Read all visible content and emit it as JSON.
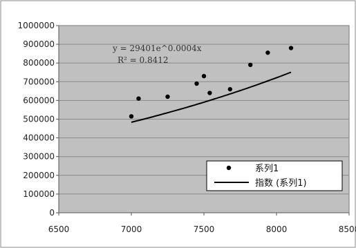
{
  "chart_data": {
    "type": "scatter",
    "title": "",
    "xlabel": "",
    "ylabel": "",
    "xlim": [
      6500,
      8500
    ],
    "ylim": [
      0,
      1000000
    ],
    "x_ticks": [
      "6500",
      "7000",
      "7500",
      "8000",
      "8500"
    ],
    "y_ticks": [
      "0",
      "100000",
      "200000",
      "300000",
      "400000",
      "500000",
      "600000",
      "700000",
      "800000",
      "900000",
      "1000000"
    ],
    "grid": true,
    "legend_position": "bottom-right",
    "plot_background": "#c0c0c0",
    "series": [
      {
        "name": "系列1",
        "marker": "dot",
        "color": "#000000",
        "points": [
          {
            "x": 7000,
            "y": 515000
          },
          {
            "x": 7050,
            "y": 610000
          },
          {
            "x": 7250,
            "y": 620000
          },
          {
            "x": 7450,
            "y": 690000
          },
          {
            "x": 7500,
            "y": 730000
          },
          {
            "x": 7540,
            "y": 640000
          },
          {
            "x": 7680,
            "y": 660000
          },
          {
            "x": 7820,
            "y": 790000
          },
          {
            "x": 7940,
            "y": 855000
          },
          {
            "x": 8100,
            "y": 880000
          }
        ]
      },
      {
        "name": "指数 (系列1)",
        "type": "trendline",
        "color": "#000000",
        "model": "exponential",
        "a": 29401,
        "b": 0.0004,
        "x_range": [
          7000,
          8100
        ]
      }
    ],
    "annotations": {
      "equation": "y = 29401e^0.0004x",
      "r_squared": "R² = 0.8412"
    }
  }
}
